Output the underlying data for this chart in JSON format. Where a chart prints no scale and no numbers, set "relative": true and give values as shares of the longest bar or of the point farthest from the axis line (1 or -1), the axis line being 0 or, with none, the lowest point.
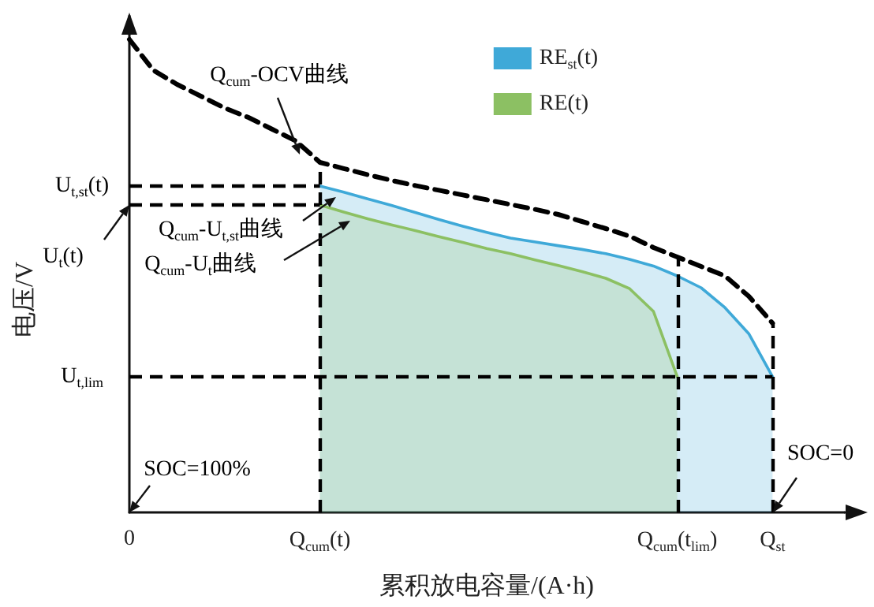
{
  "chart_data": {
    "type": "line",
    "relative": true,
    "categories": [
      "0",
      null,
      null,
      null,
      null,
      null,
      null,
      null,
      "Q$_{cum}$(t)",
      null,
      null,
      null,
      null,
      null,
      null,
      null,
      null,
      null,
      null,
      null,
      null,
      null,
      null,
      "Q$_{cum}$(t$_{lim}$)",
      null,
      null,
      null,
      "Q$_{st}$",
      null,
      null,
      null
    ],
    "xlabel": "累积放电容量/(A·h)",
    "ylabel": "电压/V",
    "legend": "top right",
    "marker": "none",
    "tick_labels": "x",
    "grid": false,
    "series": [
      {
        "color": "#000000",
        "line_style": "dashed",
        "values": [
          1.0,
          0.935,
          0.905,
          0.88,
          0.855,
          0.835,
          0.81,
          0.785,
          0.74,
          0.727,
          0.714,
          0.702,
          0.691,
          0.681,
          0.671,
          0.661,
          0.651,
          0.641,
          0.63,
          0.615,
          0.6,
          0.584,
          0.56,
          0.54,
          0.52,
          0.5,
          0.457,
          0.4,
          null,
          null,
          null
        ]
      },
      {
        "type": "area",
        "name": "RE$_{st}$(t)",
        "color": "#3fa9d8",
        "line_style": "solid",
        "values": [
          null,
          null,
          null,
          null,
          null,
          null,
          null,
          null,
          0.69,
          0.677,
          0.663,
          0.649,
          0.634,
          0.619,
          0.605,
          0.592,
          0.58,
          0.572,
          0.564,
          0.556,
          0.547,
          0.535,
          0.521,
          0.5,
          0.475,
          0.433,
          0.378,
          0.287,
          null,
          null,
          null
        ]
      },
      {
        "type": "area",
        "name": "RE(t)",
        "color": "#8cc063",
        "line_style": "solid",
        "values": [
          null,
          null,
          null,
          null,
          null,
          null,
          null,
          null,
          0.65,
          0.635,
          0.621,
          0.608,
          0.596,
          0.583,
          0.571,
          0.558,
          0.547,
          0.534,
          0.522,
          0.509,
          0.495,
          0.473,
          0.425,
          0.287,
          null,
          null,
          null,
          null,
          null,
          null,
          null
        ]
      }
    ],
    "ref_lines": [
      {
        "axis": "x",
        "value": "Q$_{cum}$(t)",
        "color": "#000000",
        "line_style": "dashed"
      },
      {
        "axis": "x",
        "value": "Q$_{cum}$(t$_{lim}$)",
        "color": "#000000",
        "line_style": "dashed"
      },
      {
        "axis": "x",
        "value": "Q$_{st}$",
        "color": "#000000",
        "line_style": "dashed"
      },
      {
        "axis": "y",
        "value": 0.69,
        "label": "U$_{t,st}$(t)",
        "color": "#000000",
        "line_style": "dashed"
      },
      {
        "axis": "y",
        "value": 0.65,
        "label": "U$_{t}$(t)",
        "color": "#000000",
        "line_style": "dashed"
      },
      {
        "axis": "y",
        "value": 0.287,
        "label": "U$_{t,lim}$",
        "color": "#000000",
        "line_style": "dashed"
      }
    ],
    "annotations": [
      "Q$_{cum}$-OCV曲线",
      "Q$_{cum}$-U$_{t,st}$曲线",
      "Q$_{cum}$-U$_{t}$曲线",
      "SOC=100%",
      "SOC=0"
    ]
  }
}
